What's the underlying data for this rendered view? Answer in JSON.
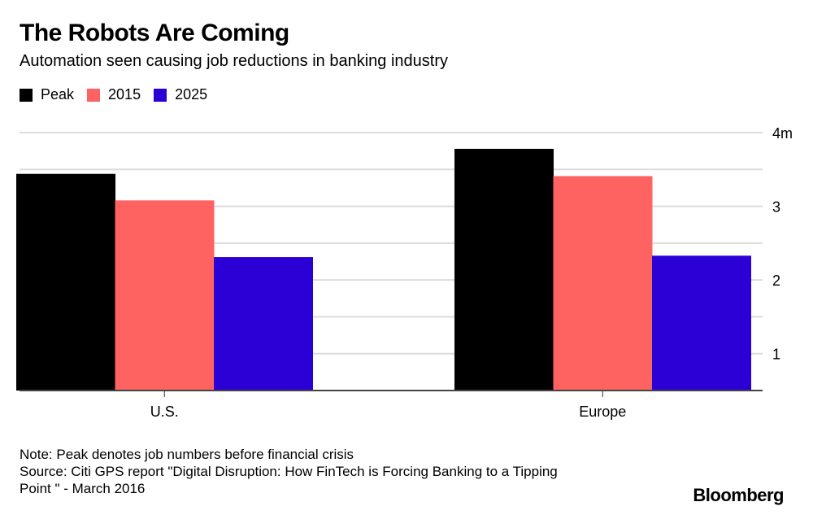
{
  "header": {
    "title": "The Robots Are Coming",
    "subtitle": "Automation seen causing job reductions in banking industry"
  },
  "chart_data": {
    "type": "bar",
    "title": "The Robots Are Coming",
    "subtitle": "Automation seen causing job reductions in banking industry",
    "categories": [
      "U.S.",
      "Europe"
    ],
    "series": [
      {
        "name": "Peak",
        "color": "#000000",
        "values": [
          3.44,
          3.78
        ]
      },
      {
        "name": "2015",
        "color": "#ff6361",
        "values": [
          3.08,
          3.41
        ]
      },
      {
        "name": "2025",
        "color": "#2a00d6",
        "values": [
          2.31,
          2.33
        ]
      }
    ],
    "ylim": [
      0.5,
      4
    ],
    "yticks": [
      1,
      2,
      3,
      4
    ],
    "ytick_labels": [
      "1",
      "2",
      "3",
      "4m"
    ],
    "y_axis_side": "right",
    "grid": true,
    "legend_position": "top-left",
    "xlabel": "",
    "ylabel": ""
  },
  "footer": {
    "note": "Note: Peak denotes job numbers before financial crisis",
    "source_line1": "Source: Citi GPS report \"Digital Disruption: How FinTech is Forcing Banking to a Tipping",
    "source_line2": "Point \" - March 2016",
    "brand": "Bloomberg"
  }
}
